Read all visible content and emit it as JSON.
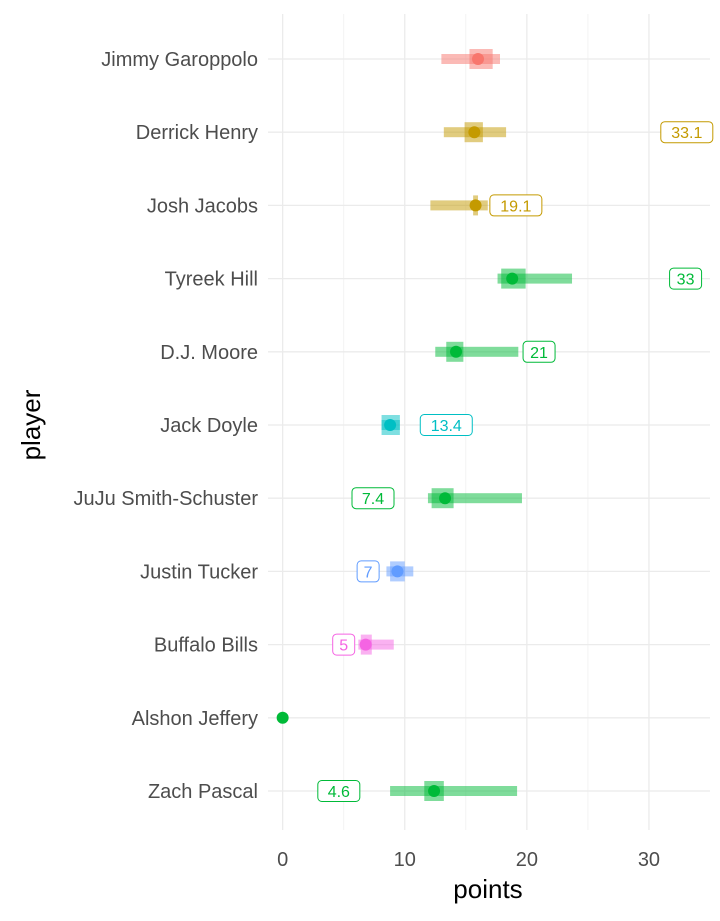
{
  "chart_data": {
    "type": "range-dot",
    "xlabel": "points",
    "ylabel": "player",
    "xlim": [
      -1.2,
      35
    ],
    "xticks": [
      0,
      10,
      20,
      30
    ],
    "grid": true,
    "legend": "none",
    "players": [
      {
        "name": "Jimmy Garoppolo",
        "color": "#F8766D",
        "point": 16.0,
        "inner": [
          15.3,
          17.2
        ],
        "outer": [
          13.0,
          17.8
        ],
        "label": null
      },
      {
        "name": "Derrick Henry",
        "color": "#C49A00",
        "point": 15.7,
        "inner": [
          14.9,
          16.4
        ],
        "outer": [
          13.2,
          18.3
        ],
        "label": "33.1",
        "label_x": 33.1
      },
      {
        "name": "Josh Jacobs",
        "color": "#C49A00",
        "point": 15.8,
        "inner": [
          15.6,
          16.0
        ],
        "outer": [
          12.1,
          16.8
        ],
        "label": "19.1",
        "label_x": 19.1
      },
      {
        "name": "Tyreek Hill",
        "color": "#00BA38",
        "point": 18.8,
        "inner": [
          17.9,
          19.9
        ],
        "outer": [
          17.6,
          23.7
        ],
        "label": "33",
        "label_x": 33.0
      },
      {
        "name": "D.J. Moore",
        "color": "#00BA38",
        "point": 14.2,
        "inner": [
          13.4,
          14.8
        ],
        "outer": [
          12.5,
          19.3
        ],
        "label": "21",
        "label_x": 21.0
      },
      {
        "name": "Jack Doyle",
        "color": "#00BFC4",
        "point": 8.8,
        "inner": [
          8.1,
          9.6
        ],
        "outer": [
          8.1,
          9.6
        ],
        "label": "13.4",
        "label_x": 13.4
      },
      {
        "name": "JuJu Smith-Schuster",
        "color": "#00BA38",
        "point": 13.3,
        "inner": [
          12.2,
          14.0
        ],
        "outer": [
          11.9,
          19.6
        ],
        "label": "7.4",
        "label_x": 7.4
      },
      {
        "name": "Justin Tucker",
        "color": "#619CFF",
        "point": 9.4,
        "inner": [
          8.8,
          10.0
        ],
        "outer": [
          8.5,
          10.7
        ],
        "label": "7",
        "label_x": 7.0
      },
      {
        "name": "Buffalo Bills",
        "color": "#F564E3",
        "point": 6.8,
        "inner": [
          6.4,
          7.3
        ],
        "outer": [
          6.2,
          9.1
        ],
        "label": "5",
        "label_x": 5.0
      },
      {
        "name": "Alshon Jeffery",
        "color": "#00BA38",
        "point": 0.0,
        "inner": [
          0.0,
          0.0
        ],
        "outer": [
          0.0,
          0.0
        ],
        "label": null
      },
      {
        "name": "Zach Pascal",
        "color": "#00BA38",
        "point": 12.4,
        "inner": [
          11.6,
          13.2
        ],
        "outer": [
          8.8,
          19.2
        ],
        "label": "4.6",
        "label_x": 4.6
      }
    ]
  }
}
